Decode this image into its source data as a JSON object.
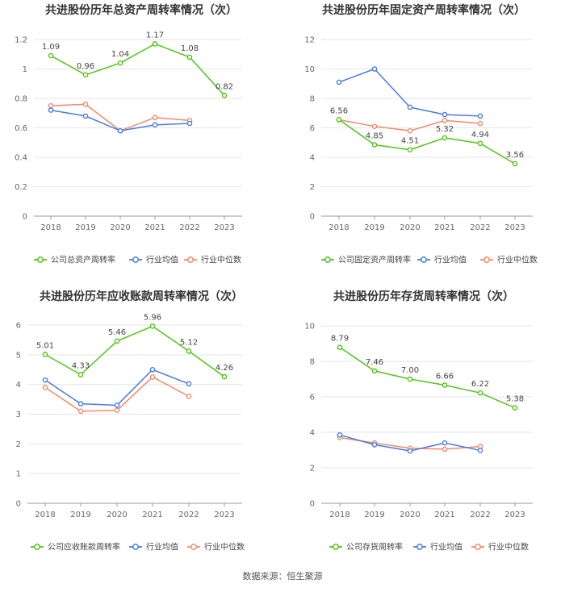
{
  "source": "数据来源：恒生聚源",
  "legend_labels": {
    "company_note": "series 0 is the company",
    "industry_avg": "行业均值",
    "industry_median": "行业中位数"
  },
  "colors": {
    "company": "#52c41a",
    "average": "#4a7be0",
    "median": "#f08a6a",
    "grid": "#e6e6e6",
    "axis": "#999999",
    "text": "#666666",
    "title": "#333333"
  },
  "chart_data": [
    {
      "type": "line",
      "title": "共进股份历年总资产周转率情况（次）",
      "categories": [
        "2018",
        "2019",
        "2020",
        "2021",
        "2022",
        "2023"
      ],
      "ylim": [
        0,
        1.2
      ],
      "yticks": [
        "0",
        "0.2",
        "0.4",
        "0.6",
        "0.8",
        "1",
        "1.2"
      ],
      "series": [
        {
          "name": "公司总资产周转率",
          "values": [
            1.09,
            0.96,
            1.04,
            1.17,
            1.08,
            0.82
          ],
          "labels": [
            "1.09",
            "0.96",
            "1.04",
            "1.17",
            "1.08",
            "0.82"
          ]
        },
        {
          "name": "行业均值",
          "values": [
            0.72,
            0.68,
            0.58,
            0.62,
            0.63,
            null
          ]
        },
        {
          "name": "行业中位数",
          "values": [
            0.75,
            0.76,
            0.58,
            0.67,
            0.65,
            null
          ]
        }
      ]
    },
    {
      "type": "line",
      "title": "共进股份历年固定资产周转率情况（次）",
      "categories": [
        "2018",
        "2019",
        "2020",
        "2021",
        "2022",
        "2023"
      ],
      "ylim": [
        0,
        12
      ],
      "yticks": [
        "0",
        "2",
        "4",
        "6",
        "8",
        "10",
        "12"
      ],
      "series": [
        {
          "name": "公司固定资产周转率",
          "values": [
            6.56,
            4.85,
            4.51,
            5.32,
            4.94,
            3.56
          ],
          "labels": [
            "6.56",
            "4.85",
            "4.51",
            "5.32",
            "4.94",
            "3.56"
          ]
        },
        {
          "name": "行业均值",
          "values": [
            9.1,
            10.0,
            7.4,
            6.9,
            6.8,
            null
          ]
        },
        {
          "name": "行业中位数",
          "values": [
            6.55,
            6.1,
            5.8,
            6.5,
            6.3,
            null
          ]
        }
      ]
    },
    {
      "type": "line",
      "title": "共进股份历年应收账款周转率情况（次）",
      "categories": [
        "2018",
        "2019",
        "2020",
        "2021",
        "2022",
        "2023"
      ],
      "ylim": [
        0,
        6
      ],
      "yticks": [
        "0",
        "1",
        "2",
        "3",
        "4",
        "5",
        "6"
      ],
      "series": [
        {
          "name": "公司应收账款周转率",
          "values": [
            5.01,
            4.33,
            5.46,
            5.96,
            5.12,
            4.26
          ],
          "labels": [
            "5.01",
            "4.33",
            "5.46",
            "5.96",
            "5.12",
            "4.26"
          ]
        },
        {
          "name": "行业均值",
          "values": [
            4.15,
            3.35,
            3.3,
            4.5,
            4.02,
            null
          ]
        },
        {
          "name": "行业中位数",
          "values": [
            3.9,
            3.1,
            3.13,
            4.25,
            3.6,
            null
          ]
        }
      ]
    },
    {
      "type": "line",
      "title": "共进股份历年存货周转率情况（次）",
      "categories": [
        "2018",
        "2019",
        "2020",
        "2021",
        "2022",
        "2023"
      ],
      "ylim": [
        0,
        10
      ],
      "yticks": [
        "0",
        "2",
        "4",
        "6",
        "8",
        "10"
      ],
      "series": [
        {
          "name": "公司存货周转率",
          "values": [
            8.79,
            7.46,
            7.0,
            6.66,
            6.22,
            5.38
          ],
          "labels": [
            "8.79",
            "7.46",
            "7.00",
            "6.66",
            "6.22",
            "5.38"
          ]
        },
        {
          "name": "行业均值",
          "values": [
            3.85,
            3.3,
            2.95,
            3.4,
            2.98,
            null
          ]
        },
        {
          "name": "行业中位数",
          "values": [
            3.7,
            3.4,
            3.1,
            3.05,
            3.2,
            null
          ]
        }
      ]
    }
  ]
}
